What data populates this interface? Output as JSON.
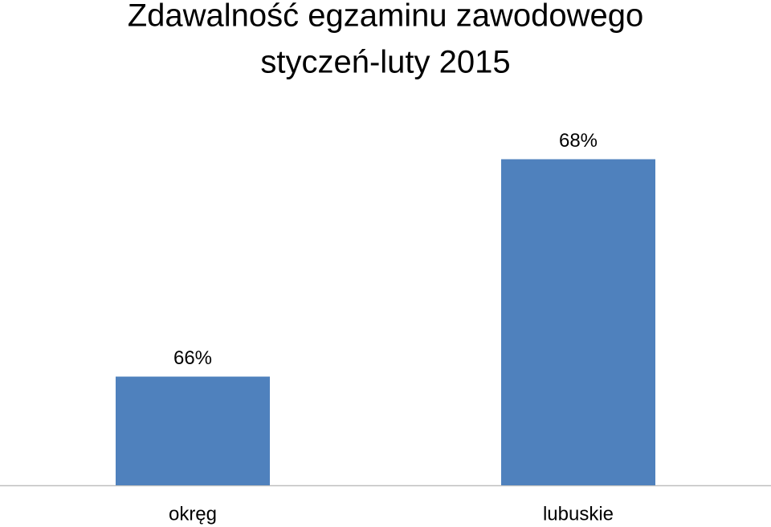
{
  "chart_data": {
    "type": "bar",
    "title": "Zdawalność egzaminu zawodowego",
    "subtitle": "styczeń-luty 2015",
    "categories": [
      "okręg",
      "lubuskie"
    ],
    "values": [
      66,
      68
    ],
    "value_labels": [
      "66%",
      "68%"
    ],
    "color": "#4f81bd",
    "ylim": [
      65,
      69
    ]
  }
}
